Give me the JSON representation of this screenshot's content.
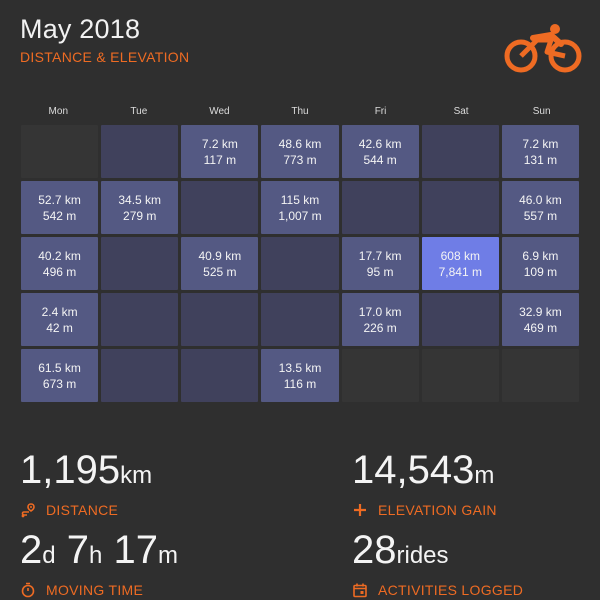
{
  "header": {
    "title": "May 2018",
    "subtitle": "DISTANCE & ELEVATION"
  },
  "icons": {
    "logo": "cyclist-icon"
  },
  "colors": {
    "accent": "#ee6b23",
    "background": "#2f2f2f",
    "day_cell": "#40415c",
    "active_cell": "#545983",
    "max_cell": "#6f7de6"
  },
  "calendar": {
    "weekdays": [
      "Mon",
      "Tue",
      "Wed",
      "Thu",
      "Fri",
      "Sat",
      "Sun"
    ],
    "weeks": [
      [
        {
          "type": "empty"
        },
        {
          "type": "day"
        },
        {
          "type": "active",
          "distance": "7.2 km",
          "elevation": "117 m"
        },
        {
          "type": "active",
          "distance": "48.6 km",
          "elevation": "773 m"
        },
        {
          "type": "active",
          "distance": "42.6 km",
          "elevation": "544 m"
        },
        {
          "type": "day"
        },
        {
          "type": "active",
          "distance": "7.2 km",
          "elevation": "131 m"
        }
      ],
      [
        {
          "type": "active",
          "distance": "52.7 km",
          "elevation": "542 m"
        },
        {
          "type": "active",
          "distance": "34.5 km",
          "elevation": "279 m"
        },
        {
          "type": "day"
        },
        {
          "type": "active",
          "distance": "115 km",
          "elevation": "1,007 m"
        },
        {
          "type": "day"
        },
        {
          "type": "day"
        },
        {
          "type": "active",
          "distance": "46.0 km",
          "elevation": "557 m"
        }
      ],
      [
        {
          "type": "active",
          "distance": "40.2 km",
          "elevation": "496 m"
        },
        {
          "type": "day"
        },
        {
          "type": "active",
          "distance": "40.9 km",
          "elevation": "525 m"
        },
        {
          "type": "day"
        },
        {
          "type": "active",
          "distance": "17.7 km",
          "elevation": "95 m"
        },
        {
          "type": "max",
          "distance": "608 km",
          "elevation": "7,841 m"
        },
        {
          "type": "active",
          "distance": "6.9 km",
          "elevation": "109 m"
        }
      ],
      [
        {
          "type": "active",
          "distance": "2.4 km",
          "elevation": "42 m"
        },
        {
          "type": "day"
        },
        {
          "type": "day"
        },
        {
          "type": "day"
        },
        {
          "type": "active",
          "distance": "17.0 km",
          "elevation": "226 m"
        },
        {
          "type": "day"
        },
        {
          "type": "active",
          "distance": "32.9 km",
          "elevation": "469 m"
        }
      ],
      [
        {
          "type": "active",
          "distance": "61.5 km",
          "elevation": "673 m"
        },
        {
          "type": "day"
        },
        {
          "type": "day"
        },
        {
          "type": "active",
          "distance": "13.5 km",
          "elevation": "116 m"
        },
        {
          "type": "empty"
        },
        {
          "type": "empty"
        },
        {
          "type": "empty"
        }
      ]
    ]
  },
  "stats": {
    "distance": {
      "value": "1,195",
      "unit": "km",
      "label": "DISTANCE",
      "icon": "route-pin-icon"
    },
    "elevation": {
      "value": "14,543",
      "unit": "m",
      "label": "ELEVATION GAIN",
      "icon": "plus-icon"
    },
    "moving_time": {
      "parts": [
        {
          "value": "2",
          "unit": "d"
        },
        {
          "value": "7",
          "unit": "h"
        },
        {
          "value": "17",
          "unit": "m"
        }
      ],
      "label": "MOVING TIME",
      "icon": "stopwatch-icon"
    },
    "activities": {
      "value": "28",
      "unit": "rides",
      "label": "ACTIVITIES LOGGED",
      "icon": "calendar-icon"
    }
  }
}
